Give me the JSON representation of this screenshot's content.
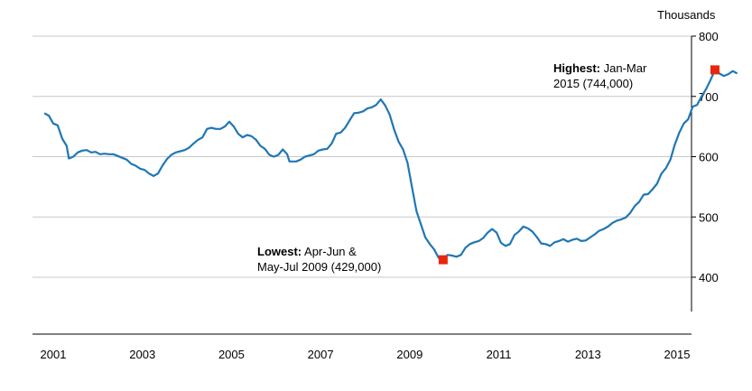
{
  "chart_data": {
    "type": "line",
    "unit_label": "Thousands",
    "ylim": [
      340,
      800
    ],
    "y_ticks": [
      400,
      500,
      600,
      700,
      800
    ],
    "xlim": [
      2000.7,
      2015.4
    ],
    "x_ticks": [
      {
        "label": "2001",
        "value": 2001.0
      },
      {
        "label": "2003",
        "value": 2003.0
      },
      {
        "label": "2005",
        "value": 2005.0
      },
      {
        "label": "2007",
        "value": 2007.0
      },
      {
        "label": "2009",
        "value": 2009.0
      },
      {
        "label": "2011",
        "value": 2011.0
      },
      {
        "label": "2013",
        "value": 2013.0
      },
      {
        "label": "2015",
        "value": 2015.0
      }
    ],
    "grid": true,
    "series": [
      {
        "color": "#1f77b4",
        "points": [
          [
            2000.8,
            672
          ],
          [
            2000.9,
            668
          ],
          [
            2001.0,
            655
          ],
          [
            2001.1,
            652
          ],
          [
            2001.2,
            630
          ],
          [
            2001.3,
            618
          ],
          [
            2001.35,
            597
          ],
          [
            2001.45,
            600
          ],
          [
            2001.55,
            607
          ],
          [
            2001.65,
            610
          ],
          [
            2001.75,
            611
          ],
          [
            2001.85,
            607
          ],
          [
            2001.95,
            608
          ],
          [
            2002.05,
            604
          ],
          [
            2002.15,
            605
          ],
          [
            2002.25,
            604
          ],
          [
            2002.35,
            604
          ],
          [
            2002.45,
            601
          ],
          [
            2002.55,
            598
          ],
          [
            2002.65,
            595
          ],
          [
            2002.75,
            588
          ],
          [
            2002.85,
            585
          ],
          [
            2002.95,
            580
          ],
          [
            2003.05,
            578
          ],
          [
            2003.15,
            572
          ],
          [
            2003.25,
            568
          ],
          [
            2003.35,
            572
          ],
          [
            2003.45,
            585
          ],
          [
            2003.55,
            596
          ],
          [
            2003.65,
            603
          ],
          [
            2003.75,
            607
          ],
          [
            2003.85,
            609
          ],
          [
            2003.95,
            611
          ],
          [
            2004.05,
            615
          ],
          [
            2004.15,
            622
          ],
          [
            2004.25,
            628
          ],
          [
            2004.35,
            632
          ],
          [
            2004.45,
            646
          ],
          [
            2004.55,
            648
          ],
          [
            2004.65,
            646
          ],
          [
            2004.75,
            646
          ],
          [
            2004.85,
            650
          ],
          [
            2004.95,
            658
          ],
          [
            2005.05,
            650
          ],
          [
            2005.15,
            638
          ],
          [
            2005.25,
            632
          ],
          [
            2005.35,
            636
          ],
          [
            2005.45,
            634
          ],
          [
            2005.55,
            628
          ],
          [
            2005.65,
            618
          ],
          [
            2005.75,
            613
          ],
          [
            2005.85,
            603
          ],
          [
            2005.95,
            600
          ],
          [
            2006.05,
            603
          ],
          [
            2006.15,
            612
          ],
          [
            2006.25,
            604
          ],
          [
            2006.3,
            592
          ],
          [
            2006.45,
            592
          ],
          [
            2006.55,
            595
          ],
          [
            2006.65,
            600
          ],
          [
            2006.75,
            602
          ],
          [
            2006.85,
            604
          ],
          [
            2006.95,
            610
          ],
          [
            2007.05,
            612
          ],
          [
            2007.15,
            613
          ],
          [
            2007.25,
            622
          ],
          [
            2007.35,
            638
          ],
          [
            2007.45,
            640
          ],
          [
            2007.55,
            648
          ],
          [
            2007.65,
            660
          ],
          [
            2007.75,
            672
          ],
          [
            2007.85,
            673
          ],
          [
            2007.95,
            675
          ],
          [
            2008.05,
            680
          ],
          [
            2008.15,
            682
          ],
          [
            2008.25,
            686
          ],
          [
            2008.35,
            695
          ],
          [
            2008.45,
            685
          ],
          [
            2008.55,
            670
          ],
          [
            2008.65,
            645
          ],
          [
            2008.75,
            625
          ],
          [
            2008.85,
            612
          ],
          [
            2008.95,
            590
          ],
          [
            2009.05,
            550
          ],
          [
            2009.15,
            510
          ],
          [
            2009.25,
            488
          ],
          [
            2009.35,
            466
          ],
          [
            2009.45,
            455
          ],
          [
            2009.55,
            446
          ],
          [
            2009.65,
            432
          ],
          [
            2009.75,
            429
          ],
          [
            2009.85,
            437
          ],
          [
            2009.95,
            436
          ],
          [
            2010.05,
            434
          ],
          [
            2010.15,
            437
          ],
          [
            2010.25,
            449
          ],
          [
            2010.35,
            455
          ],
          [
            2010.45,
            458
          ],
          [
            2010.55,
            460
          ],
          [
            2010.65,
            465
          ],
          [
            2010.75,
            474
          ],
          [
            2010.85,
            480
          ],
          [
            2010.95,
            474
          ],
          [
            2011.05,
            457
          ],
          [
            2011.15,
            452
          ],
          [
            2011.25,
            455
          ],
          [
            2011.35,
            470
          ],
          [
            2011.45,
            476
          ],
          [
            2011.55,
            484
          ],
          [
            2011.65,
            481
          ],
          [
            2011.75,
            476
          ],
          [
            2011.85,
            467
          ],
          [
            2011.95,
            456
          ],
          [
            2012.05,
            455
          ],
          [
            2012.15,
            452
          ],
          [
            2012.25,
            458
          ],
          [
            2012.35,
            460
          ],
          [
            2012.45,
            463
          ],
          [
            2012.55,
            459
          ],
          [
            2012.65,
            462
          ],
          [
            2012.75,
            464
          ],
          [
            2012.85,
            460
          ],
          [
            2012.95,
            461
          ],
          [
            2013.05,
            466
          ],
          [
            2013.15,
            471
          ],
          [
            2013.25,
            477
          ],
          [
            2013.35,
            480
          ],
          [
            2013.45,
            484
          ],
          [
            2013.55,
            490
          ],
          [
            2013.65,
            494
          ],
          [
            2013.75,
            496
          ],
          [
            2013.85,
            499
          ],
          [
            2013.95,
            507
          ],
          [
            2014.05,
            518
          ],
          [
            2014.15,
            525
          ],
          [
            2014.25,
            537
          ],
          [
            2014.35,
            538
          ],
          [
            2014.45,
            546
          ],
          [
            2014.55,
            555
          ],
          [
            2014.65,
            572
          ],
          [
            2014.75,
            581
          ],
          [
            2014.85,
            595
          ],
          [
            2014.95,
            620
          ],
          [
            2015.05,
            640
          ],
          [
            2015.15,
            655
          ],
          [
            2015.25,
            662
          ],
          [
            2015.35,
            683
          ],
          [
            2015.45,
            686
          ],
          [
            2015.55,
            700
          ],
          [
            2015.65,
            712
          ],
          [
            2015.75,
            727
          ],
          [
            2015.85,
            744
          ],
          [
            2015.95,
            738
          ],
          [
            2016.05,
            734
          ],
          [
            2016.15,
            737
          ],
          [
            2016.25,
            742
          ],
          [
            2016.35,
            738
          ]
        ]
      }
    ],
    "markers": [
      {
        "x": 2009.75,
        "y": 429,
        "color": "#e8260e"
      },
      {
        "x": 2015.85,
        "y": 744,
        "color": "#e8260e"
      }
    ],
    "annotations": {
      "lowest": {
        "bold": "Lowest:",
        "rest": " Apr-Jun &",
        "line2": "May-Jul 2009 (429,000)"
      },
      "highest": {
        "bold": "Highest:",
        "rest": " Jan-Mar",
        "line2": "2015 (744,000)"
      }
    }
  }
}
